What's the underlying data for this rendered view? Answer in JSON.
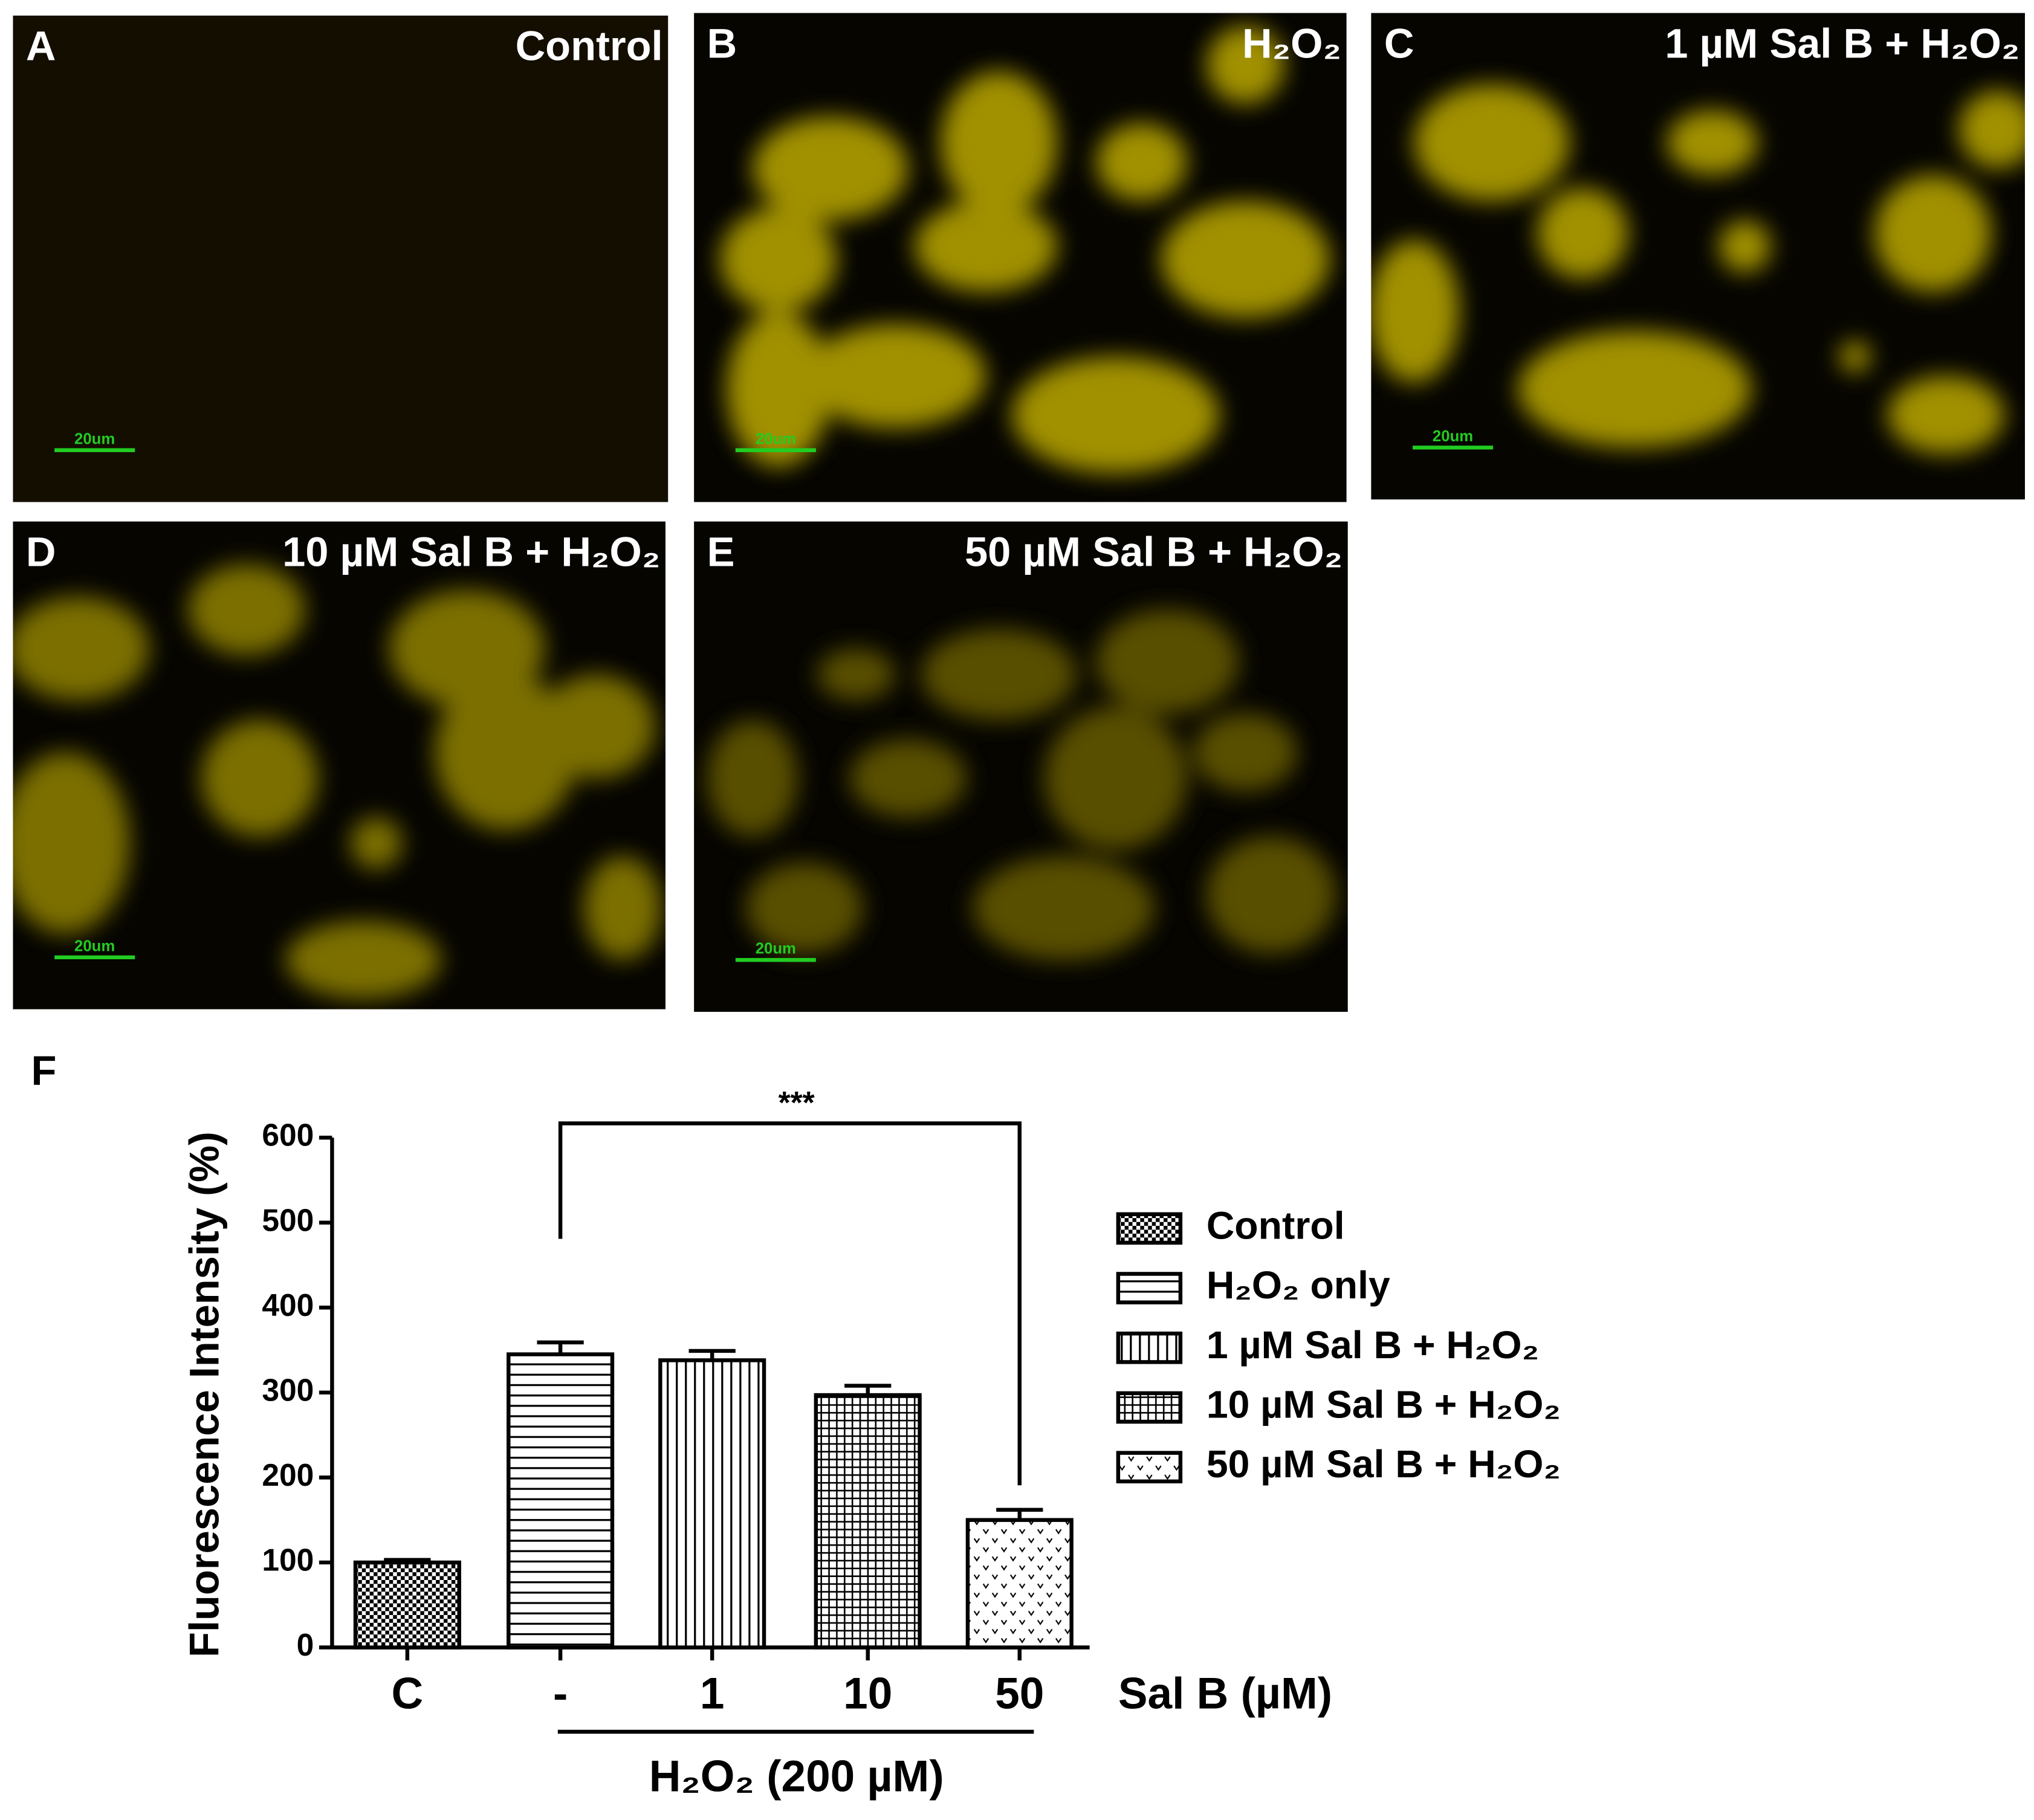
{
  "panels": [
    {
      "letter": "A",
      "title": "Control",
      "scale": "20um"
    },
    {
      "letter": "B",
      "title": "H₂O₂",
      "scale": "20um"
    },
    {
      "letter": "C",
      "title": "1 µM Sal B + H₂O₂",
      "scale": "20um"
    },
    {
      "letter": "D",
      "title": "10 µM Sal B + H₂O₂",
      "scale": "20um"
    },
    {
      "letter": "E",
      "title": "50 µM Sal B + H₂O₂",
      "scale": "20um"
    }
  ],
  "chart_data": {
    "type": "bar",
    "title": "F",
    "y_label": "Fluorescence Intensity (%)",
    "x_label": "Sal B (µM)",
    "group_label": "H₂O₂ (200 µM)",
    "significance": "***",
    "categories": [
      "C",
      "-",
      "1",
      "10",
      "50"
    ],
    "values": [
      100,
      345,
      338,
      297,
      150
    ],
    "errors": [
      3,
      14,
      11,
      11,
      12
    ],
    "legend": [
      "Control",
      "H₂O₂ only",
      "1 µM Sal B + H₂O₂",
      "10 µM Sal B + H₂O₂",
      "50 µM Sal B + H₂O₂"
    ],
    "ylim": [
      0,
      600
    ],
    "yticks": [
      0,
      100,
      200,
      300,
      400,
      500,
      600
    ],
    "color": "#000000"
  }
}
